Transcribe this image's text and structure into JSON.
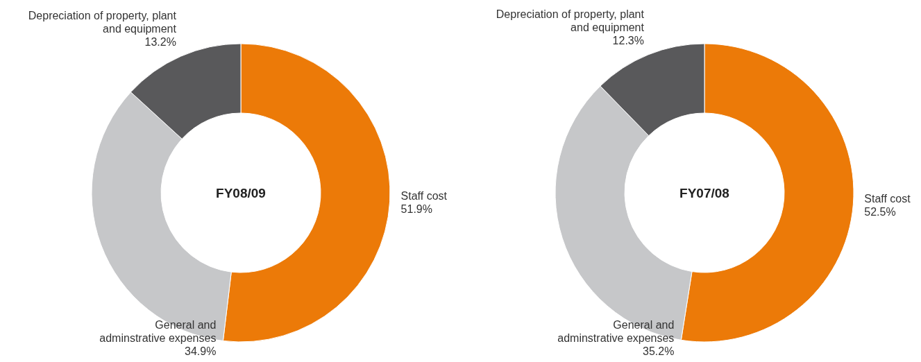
{
  "chart_data": [
    {
      "type": "donut",
      "title": "FY08/09",
      "categories": [
        "Staff cost",
        "General and adminstrative expenses",
        "Depreciation of property, plant and equipment"
      ],
      "values": [
        51.9,
        34.9,
        13.2
      ],
      "colors": [
        "#ec7a08",
        "#c6c7c9",
        "#59595b"
      ],
      "value_labels": [
        "51.9%",
        "34.9%",
        "13.2%"
      ]
    },
    {
      "type": "donut",
      "title": "FY07/08",
      "categories": [
        "Staff cost",
        "General and adminstrative expenses",
        "Depreciation of property, plant and equipment"
      ],
      "values": [
        52.5,
        35.2,
        12.3
      ],
      "colors": [
        "#ec7a08",
        "#c6c7c9",
        "#59595b"
      ],
      "value_labels": [
        "52.5%",
        "35.2%",
        "12.3%"
      ]
    }
  ]
}
